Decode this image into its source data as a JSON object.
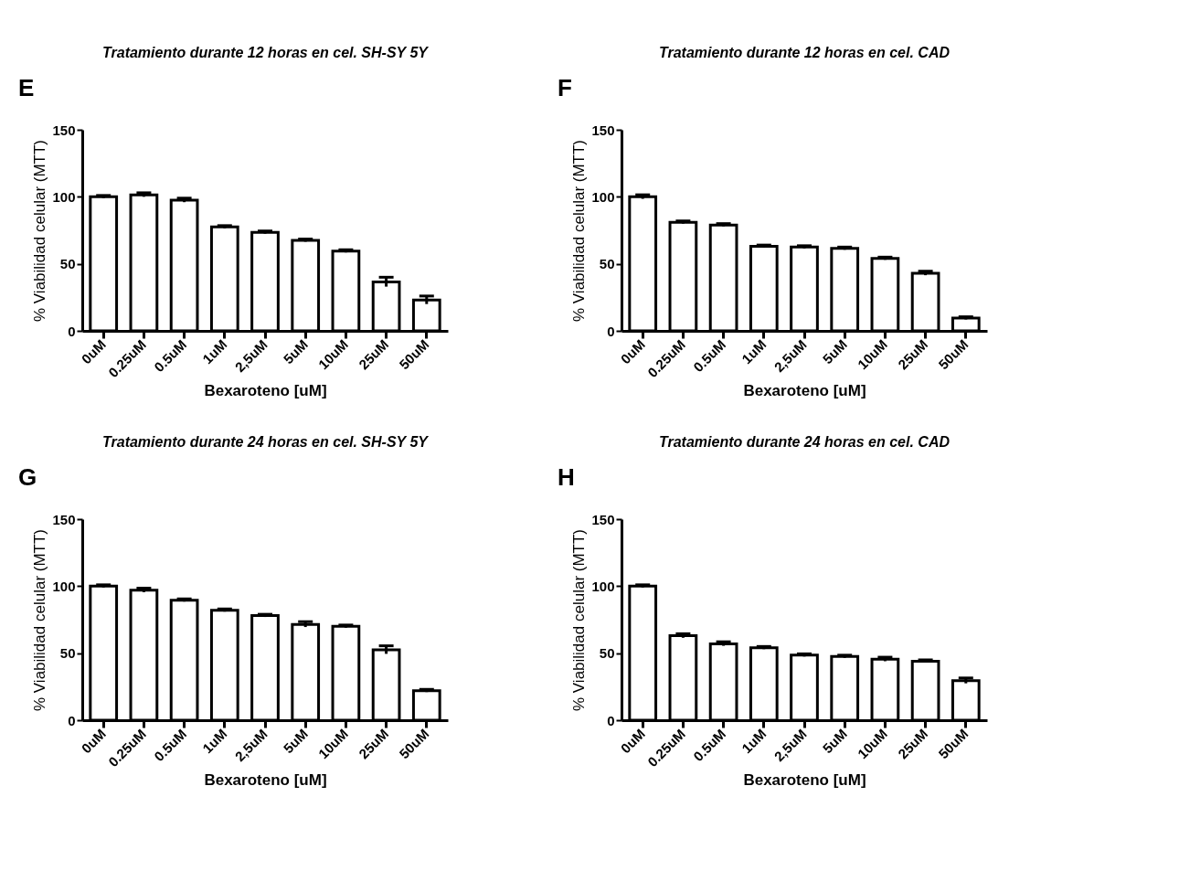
{
  "chart_data": [
    {
      "type": "bar",
      "title": "Tratamiento durante 12 horas en cel. SH-SY 5Y",
      "xlabel": "Bexaroteno [uM]",
      "ylabel": "% Viabilidad celular (MTT)",
      "annotations": [
        "E"
      ],
      "categories": [
        "0uM",
        "0.25uM",
        "0.5uM",
        "1uM",
        "2,5uM",
        "5uM",
        "10uM",
        "25uM",
        "50uM"
      ],
      "values": [
        100,
        101.5,
        97.5,
        77.5,
        73.5,
        67.5,
        59.5,
        36.5,
        23
      ],
      "errors": [
        1,
        1.5,
        1.5,
        1,
        1,
        1,
        1,
        3.5,
        3
      ],
      "color": "#ffffff",
      "ylim": [
        0,
        150
      ],
      "yticks": [
        0,
        50,
        100,
        150
      ],
      "grid": false
    },
    {
      "type": "bar",
      "title": "Tratamiento durante 12 horas en cel. CAD",
      "xlabel": "Bexaroteno [uM]",
      "ylabel": "% Viabilidad celular (MTT)",
      "annotations": [
        "F"
      ],
      "categories": [
        "0uM",
        "0.25uM",
        "0.5uM",
        "1uM",
        "2,5uM",
        "5uM",
        "10uM",
        "25uM",
        "50uM"
      ],
      "values": [
        100,
        81,
        79,
        63,
        62.5,
        61.5,
        54,
        43,
        9.5
      ],
      "errors": [
        1.5,
        1,
        1,
        1,
        1,
        1,
        1,
        1.5,
        1
      ],
      "color": "#ffffff",
      "ylim": [
        0,
        150
      ],
      "yticks": [
        0,
        50,
        100,
        150
      ],
      "grid": false
    },
    {
      "type": "bar",
      "title": "Tratamiento durante 24 horas en cel. SH-SY 5Y",
      "xlabel": "Bexaroteno [uM]",
      "ylabel": "% Viabilidad celular (MTT)",
      "annotations": [
        "G"
      ],
      "categories": [
        "0uM",
        "0.25uM",
        "0.5uM",
        "1uM",
        "2,5uM",
        "5uM",
        "10uM",
        "25uM",
        "50uM"
      ],
      "values": [
        100,
        97,
        89.5,
        82,
        78,
        71.5,
        70,
        52.5,
        22
      ],
      "errors": [
        1,
        1.5,
        1,
        1,
        1,
        2,
        1,
        3,
        1
      ],
      "color": "#ffffff",
      "ylim": [
        0,
        150
      ],
      "yticks": [
        0,
        50,
        100,
        150
      ],
      "grid": false
    },
    {
      "type": "bar",
      "title": "Tratamiento durante 24 horas en cel. CAD",
      "xlabel": "Bexaroteno [uM]",
      "ylabel": "% Viabilidad celular (MTT)",
      "annotations": [
        "H"
      ],
      "categories": [
        "0uM",
        "0.25uM",
        "0.5uM",
        "1uM",
        "2,5uM",
        "5uM",
        "10uM",
        "25uM",
        "50uM"
      ],
      "values": [
        100,
        63,
        57,
        54,
        48.5,
        47.5,
        45.5,
        44,
        29.5
      ],
      "errors": [
        1,
        1.5,
        1.5,
        1,
        1,
        1,
        1.5,
        1,
        2
      ],
      "color": "#ffffff",
      "ylim": [
        0,
        150
      ],
      "yticks": [
        0,
        50,
        100,
        150
      ],
      "grid": false
    }
  ]
}
